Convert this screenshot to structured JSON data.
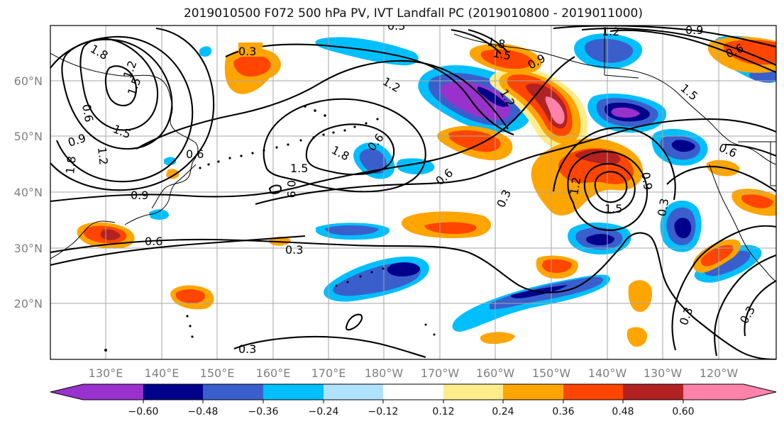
{
  "figure": {
    "title": "2019010500 F072 500 hPa PV, IVT Landfall PC (2019010800 - 2019011000)"
  },
  "map": {
    "type": "shaded anomaly map with line contours",
    "region": "North Pacific",
    "lon_range": "120°E to 110°W",
    "lat_range": "10°N to 70°N",
    "gridlines": true,
    "coastlines": true,
    "lon_ticks": [
      {
        "id": "130e",
        "label": "130°E"
      },
      {
        "id": "140e",
        "label": "140°E"
      },
      {
        "id": "150e",
        "label": "150°E"
      },
      {
        "id": "160e",
        "label": "160°E"
      },
      {
        "id": "170e",
        "label": "170°E"
      },
      {
        "id": "180w",
        "label": "180°W"
      },
      {
        "id": "170w",
        "label": "170°W"
      },
      {
        "id": "160w",
        "label": "160°W"
      },
      {
        "id": "150w",
        "label": "150°W"
      },
      {
        "id": "140w",
        "label": "140°W"
      },
      {
        "id": "130w",
        "label": "130°W"
      },
      {
        "id": "120w",
        "label": "120°W"
      }
    ],
    "lat_ticks": [
      {
        "id": "60n",
        "label": "60°N"
      },
      {
        "id": "50n",
        "label": "50°N"
      },
      {
        "id": "40n",
        "label": "40°N"
      },
      {
        "id": "30n",
        "label": "30°N"
      },
      {
        "id": "20n",
        "label": "20°N"
      }
    ],
    "contour_labels": [
      "0.3",
      "0.6",
      "0.9",
      "1.2",
      "1.5",
      "1.8"
    ]
  },
  "colorbar": {
    "orientation": "horizontal",
    "extend": "both",
    "colors": [
      "#9932cc",
      "#00008b",
      "#3a5fcd",
      "#00bfff",
      "#b0e2ff",
      "#ffffff",
      "#ffffff",
      "#ffec8b",
      "#ffa500",
      "#ff4500",
      "#b22222",
      "#ff82ab"
    ],
    "tick_labels": [
      "−0.60",
      "−0.48",
      "−0.36",
      "−0.24",
      "−0.12",
      "0.12",
      "0.24",
      "0.36",
      "0.48",
      "0.60"
    ]
  }
}
